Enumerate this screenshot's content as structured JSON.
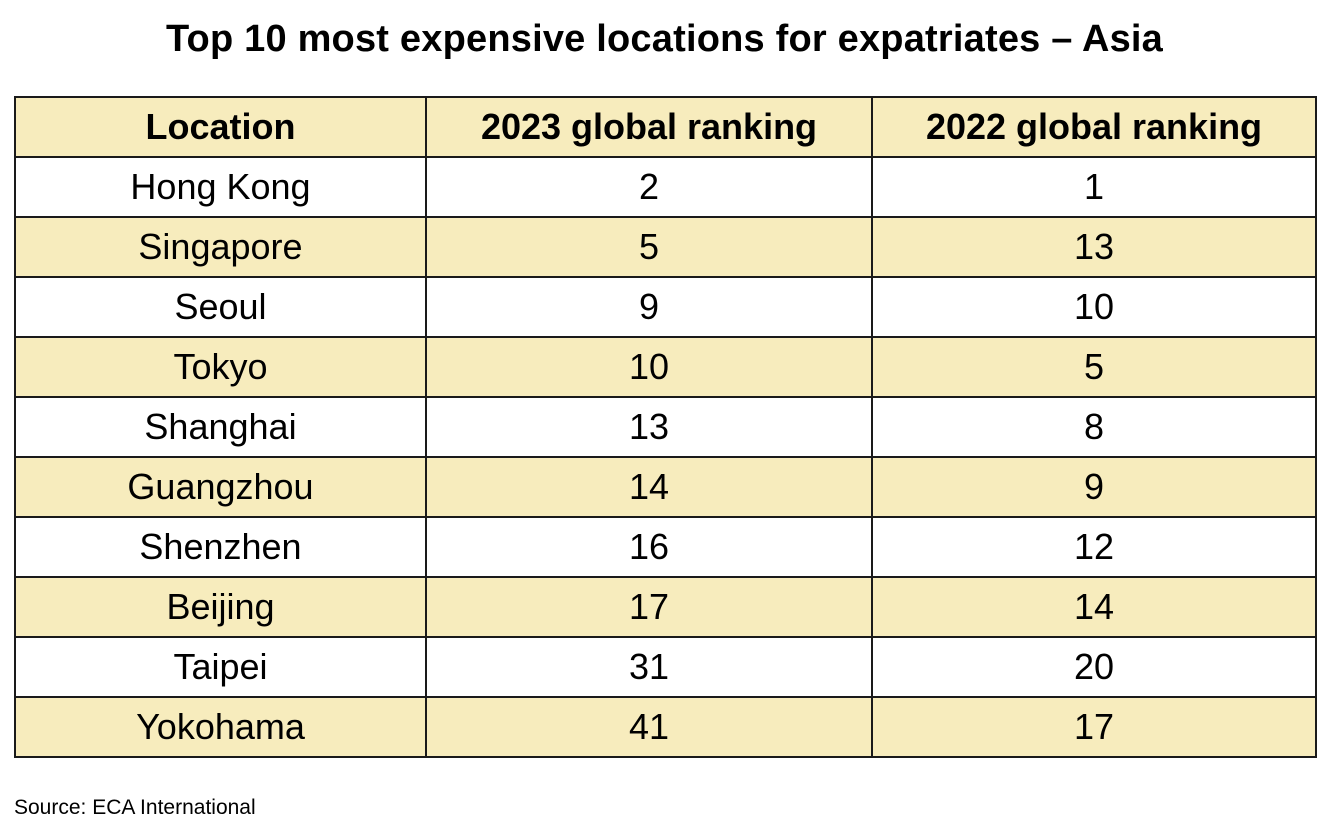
{
  "title": "Top 10 most expensive locations for expatriates – Asia",
  "table": {
    "headers": [
      "Location",
      "2023 global ranking",
      "2022 global ranking"
    ],
    "rows": [
      [
        "Hong Kong",
        "2",
        "1"
      ],
      [
        "Singapore",
        "5",
        "13"
      ],
      [
        "Seoul",
        "9",
        "10"
      ],
      [
        "Tokyo",
        "10",
        "5"
      ],
      [
        "Shanghai",
        "13",
        "8"
      ],
      [
        "Guangzhou",
        "14",
        "9"
      ],
      [
        "Shenzhen",
        "16",
        "12"
      ],
      [
        "Beijing",
        "17",
        "14"
      ],
      [
        "Taipei",
        "31",
        "20"
      ],
      [
        "Yokohama",
        "41",
        "17"
      ]
    ]
  },
  "source": "Source: ECA International",
  "colors": {
    "band": "#f7ecbd",
    "border": "#1a1a1a",
    "text": "#000000"
  }
}
